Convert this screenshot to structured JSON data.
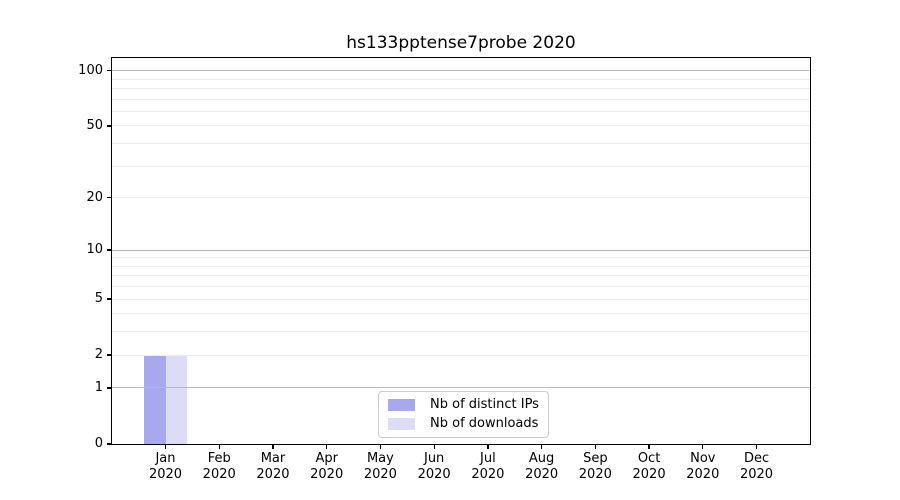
{
  "title": "hs133pptense7probe 2020",
  "chart_data": {
    "type": "bar",
    "title": "hs133pptense7probe 2020",
    "categories": [
      "Jan 2020",
      "Feb 2020",
      "Mar 2020",
      "Apr 2020",
      "May 2020",
      "Jun 2020",
      "Jul 2020",
      "Aug 2020",
      "Sep 2020",
      "Oct 2020",
      "Nov 2020",
      "Dec 2020"
    ],
    "series": [
      {
        "name": "Nb of distinct IPs",
        "color": "#a8a8ef",
        "values": [
          2,
          0,
          0,
          0,
          0,
          0,
          0,
          0,
          0,
          0,
          0,
          0
        ]
      },
      {
        "name": "Nb of downloads",
        "color": "#dcdcf7",
        "values": [
          2,
          0,
          0,
          0,
          0,
          0,
          0,
          0,
          0,
          0,
          0,
          0
        ]
      }
    ],
    "xlabel": "",
    "ylabel": "",
    "yscale": "log1p",
    "ylim": [
      0,
      117
    ],
    "y_ticks_labeled": [
      0,
      1,
      2,
      5,
      10,
      20,
      50,
      100
    ],
    "y_grid_major": [
      1,
      10,
      100
    ],
    "y_grid_minor": [
      2,
      3,
      4,
      5,
      6,
      7,
      8,
      9,
      20,
      30,
      40,
      50,
      60,
      70,
      80,
      90
    ],
    "grid": "horizontal",
    "legend_position": "lower center"
  },
  "legend": {
    "items": [
      {
        "label": "Nb of distinct IPs",
        "color": "#a8a8ef"
      },
      {
        "label": "Nb of downloads",
        "color": "#dcdcf7"
      }
    ]
  },
  "colors": {
    "background": "#ffffff",
    "axis": "#000000",
    "grid_major": "#b9b9b9",
    "grid_minor": "#ececec",
    "legend_border": "#cccccc",
    "text": "#000000"
  }
}
